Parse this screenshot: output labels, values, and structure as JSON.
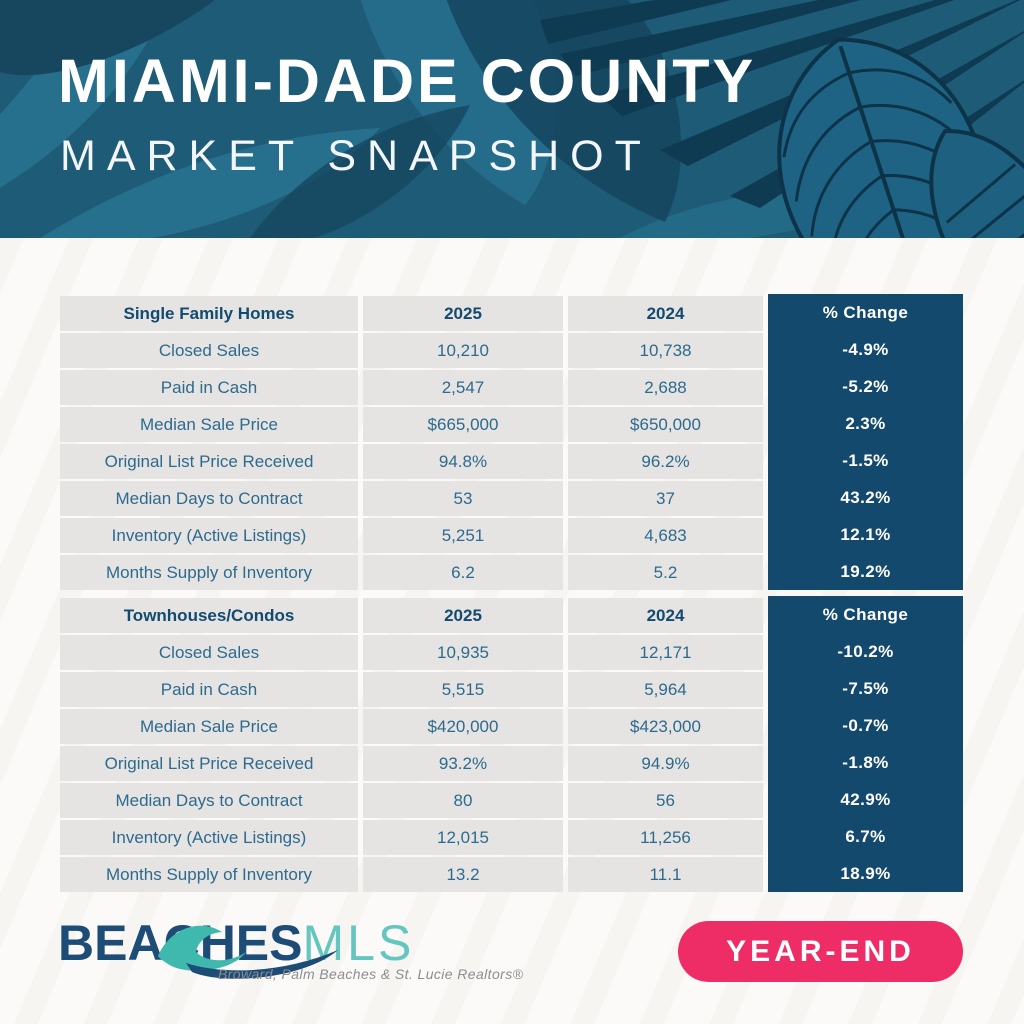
{
  "header": {
    "title": "MIAMI-DADE COUNTY",
    "subtitle": "MARKET SNAPSHOT"
  },
  "chart_data": [
    {
      "type": "table",
      "title": "Single Family Homes",
      "columns": [
        "Single Family Homes",
        "2025",
        "2024",
        "% Change"
      ],
      "rows": [
        [
          "Closed Sales",
          "10,210",
          "10,738",
          "-4.9%"
        ],
        [
          "Paid in Cash",
          "2,547",
          "2,688",
          "-5.2%"
        ],
        [
          "Median Sale Price",
          "$665,000",
          "$650,000",
          "2.3%"
        ],
        [
          "Original List Price Received",
          "94.8%",
          "96.2%",
          "-1.5%"
        ],
        [
          "Median Days to Contract",
          "53",
          "37",
          "43.2%"
        ],
        [
          "Inventory (Active Listings)",
          "5,251",
          "4,683",
          "12.1%"
        ],
        [
          "Months Supply of Inventory",
          "6.2",
          "5.2",
          "19.2%"
        ]
      ]
    },
    {
      "type": "table",
      "title": "Townhouses/Condos",
      "columns": [
        "Townhouses/Condos",
        "2025",
        "2024",
        "% Change"
      ],
      "rows": [
        [
          "Closed Sales",
          "10,935",
          "12,171",
          "-10.2%"
        ],
        [
          "Paid in Cash",
          "5,515",
          "5,964",
          "-7.5%"
        ],
        [
          "Median Sale Price",
          "$420,000",
          "$423,000",
          "-0.7%"
        ],
        [
          "Original List Price Received",
          "93.2%",
          "94.9%",
          "-1.8%"
        ],
        [
          "Median Days to Contract",
          "80",
          "56",
          "42.9%"
        ],
        [
          "Inventory (Active Listings)",
          "12,015",
          "11,256",
          "6.7%"
        ],
        [
          "Months Supply of Inventory",
          "13.2",
          "11.1",
          "18.9%"
        ]
      ]
    }
  ],
  "footer": {
    "logo": {
      "part1": "BEA",
      "part_c": "C",
      "part2": "HES",
      "mls": "MLS",
      "tagline": "Broward, Palm Beaches & St. Lucie Realtors®"
    },
    "badge": "YEAR-END"
  },
  "colors": {
    "header_bg": "#1d5b76",
    "navy": "#14496e",
    "gray_cell": "#e5e4e2",
    "text_blue": "#2d6a8e",
    "text_navy": "#134a70",
    "pink": "#ee2d67",
    "logo_navy": "#1d4d77",
    "logo_teal": "#64c6bf",
    "leaf_dark": "#0e3a52",
    "leaf_light": "#26708e"
  }
}
